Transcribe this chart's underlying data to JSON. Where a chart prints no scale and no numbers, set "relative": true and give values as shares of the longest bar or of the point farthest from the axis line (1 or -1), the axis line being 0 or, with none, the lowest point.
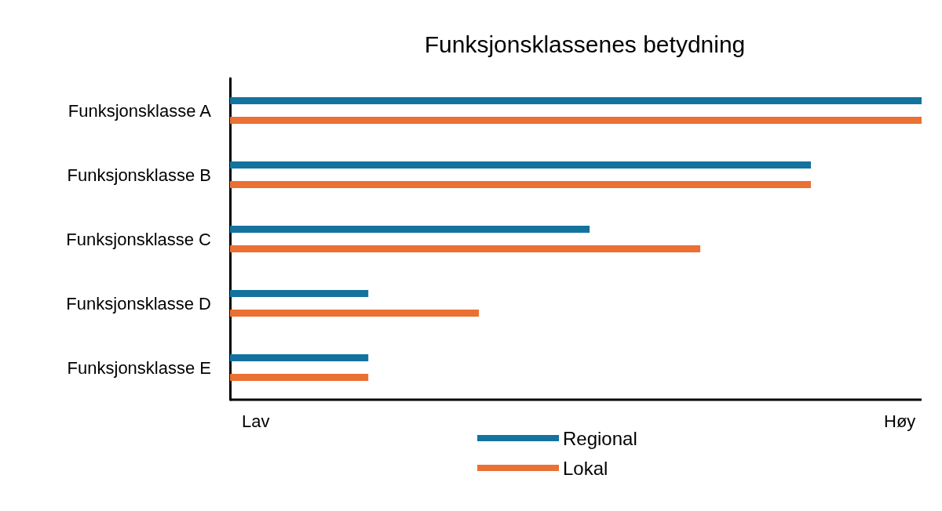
{
  "chart_data": {
    "type": "bar",
    "orientation": "horizontal",
    "title": "Funksjonsklassenes betydning",
    "categories": [
      "Funksjonsklasse A",
      "Funksjonsklasse B",
      "Funksjonsklasse C",
      "Funksjonsklasse D",
      "Funksjonsklasse E"
    ],
    "series": [
      {
        "name": "Regional",
        "color": "#14739e",
        "values": [
          1,
          0.84,
          0.52,
          0.2,
          0.2
        ]
      },
      {
        "name": "Lokal",
        "color": "#ea7034",
        "values": [
          1,
          0.84,
          0.68,
          0.36,
          0.2
        ]
      }
    ],
    "relative": true,
    "annotations": [
      "Lav",
      "Høy"
    ],
    "legend": "bottom"
  }
}
